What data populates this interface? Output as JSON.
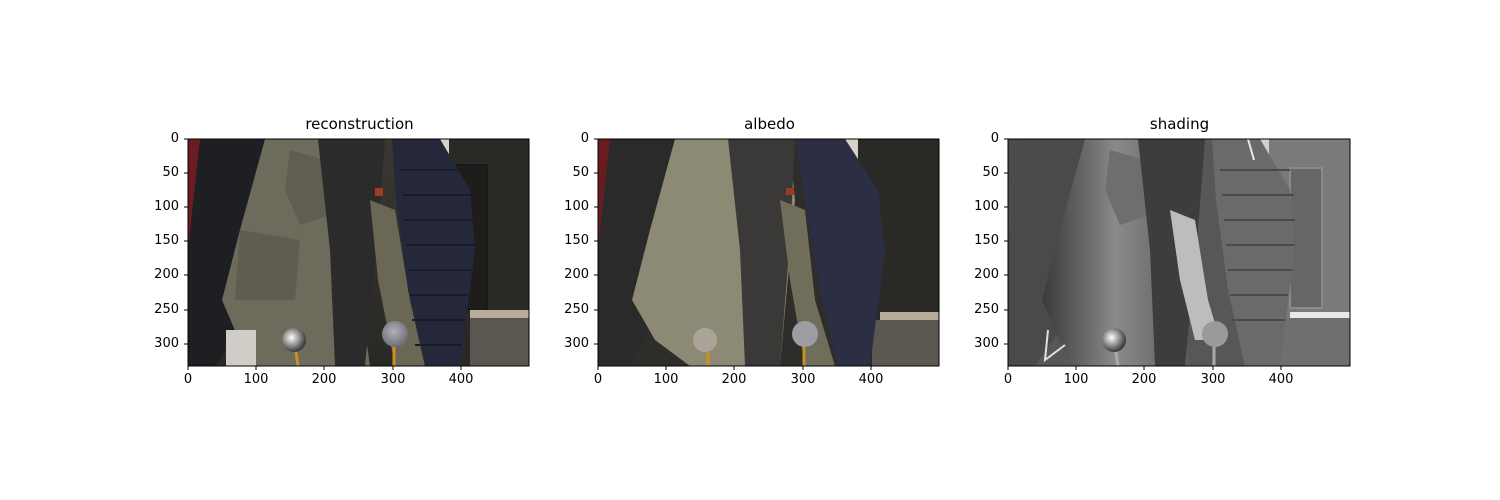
{
  "panels": [
    {
      "title": "reconstruction"
    },
    {
      "title": "albedo"
    },
    {
      "title": "shading"
    }
  ],
  "axis": {
    "y_ticks": [
      "0",
      "50",
      "100",
      "150",
      "200",
      "250",
      "300"
    ],
    "x_ticks": [
      "0",
      "100",
      "200",
      "300",
      "400"
    ]
  }
}
